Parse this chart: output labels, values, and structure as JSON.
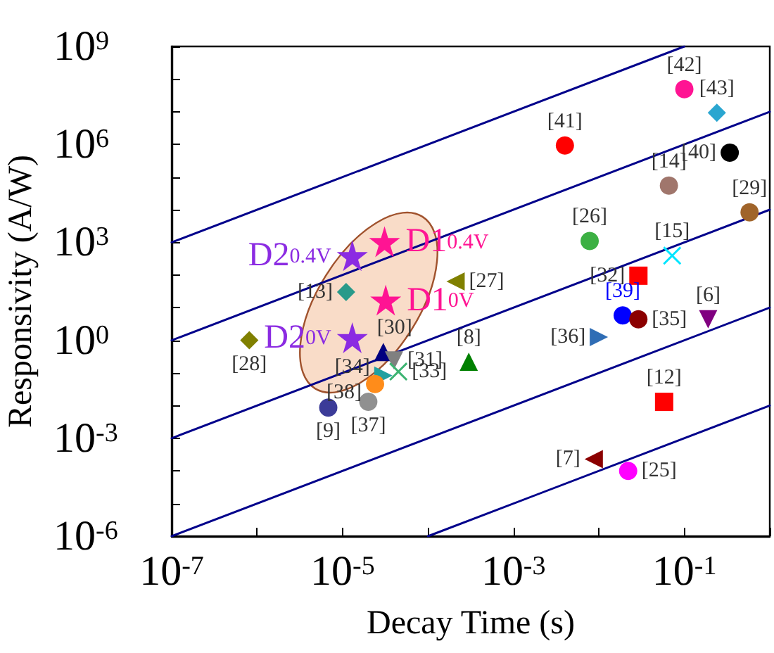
{
  "chart_data": {
    "type": "scatter",
    "xlabel": "Decay Time (s)",
    "ylabel": "Responsivity (A/W)",
    "log": "xy",
    "grid": false,
    "legend": false,
    "xlim": [
      1e-07,
      1
    ],
    "ylim": [
      1e-06,
      1000000000.0
    ],
    "xticks": [
      {
        "value": 1e-07,
        "label": "10$^{-7}$"
      },
      {
        "value": 1e-06,
        "label": null
      },
      {
        "value": 1e-05,
        "label": "10$^{-5}$"
      },
      {
        "value": 0.0001,
        "label": null
      },
      {
        "value": 0.001,
        "label": "10$^{-3}$"
      },
      {
        "value": 0.01,
        "label": null
      },
      {
        "value": 0.1,
        "label": "10$^{-1}$"
      },
      {
        "value": 1,
        "label": null
      }
    ],
    "yticks": [
      {
        "value": 1e-06,
        "label": "10$^{-6}$"
      },
      {
        "value": 1e-05,
        "label": null
      },
      {
        "value": 0.0001,
        "label": null
      },
      {
        "value": 0.001,
        "label": "10$^{-3}$"
      },
      {
        "value": 0.01,
        "label": null
      },
      {
        "value": 0.1,
        "label": null
      },
      {
        "value": 1,
        "label": "10$^{0}$"
      },
      {
        "value": 10,
        "label": null
      },
      {
        "value": 100,
        "label": null
      },
      {
        "value": 1000,
        "label": "10$^{3}$"
      },
      {
        "value": 10000.0,
        "label": null
      },
      {
        "value": 100000.0,
        "label": null
      },
      {
        "value": 1000000.0,
        "label": "10$^{6}$"
      },
      {
        "value": 10000000.0,
        "label": null
      },
      {
        "value": 100000000.0,
        "label": null
      },
      {
        "value": 1000000000.0,
        "label": "10$^{9}$"
      }
    ],
    "series": [
      {
        "type": "scatter",
        "name": "[42]",
        "color": "#ff1493",
        "x": [
          0.1
        ],
        "values": [
          49000000.0
        ]
      },
      {
        "type": "scatter",
        "name": "[43]",
        "color": "#2aa6d0",
        "marker": "diamond",
        "x": [
          0.24
        ],
        "values": [
          9300000.0
        ]
      },
      {
        "type": "scatter",
        "name": "[41]",
        "color": "#ff0000",
        "marker": "circle",
        "x": [
          0.004
        ],
        "values": [
          930000.0
        ]
      },
      {
        "type": "scatter",
        "name": "[40]",
        "color": "#000000",
        "x": [
          0.34
        ],
        "values": [
          560000.0
        ]
      },
      {
        "type": "scatter",
        "name": "[14]",
        "color": "#a0766c",
        "marker": "circle",
        "x": [
          0.066
        ],
        "values": [
          55000.0
        ]
      },
      {
        "type": "scatter",
        "name": "[29]",
        "color": "#a0642a",
        "x": [
          0.58
        ],
        "values": [
          8300
        ]
      },
      {
        "type": "scatter",
        "name": "D1$_{0.4V}$",
        "color": "#ff1493",
        "marker": "star",
        "x": [
          3.1e-05
        ],
        "values": [
          1050
        ]
      },
      {
        "type": "scatter",
        "name": "D2$_{0.4V}$",
        "color": "#8b2be2",
        "marker": "star",
        "x": [
          1.3e-05
        ],
        "values": [
          390
        ]
      },
      {
        "type": "scatter",
        "name": "[13]",
        "color": "#2a9a8a",
        "marker": "diamond",
        "x": [
          1.1e-05
        ],
        "values": [
          30
        ]
      },
      {
        "type": "scatter",
        "name": "D1$_{0V}$",
        "color": "#ff1493",
        "marker": "star",
        "x": [
          3.2e-05
        ],
        "values": [
          17
        ]
      },
      {
        "type": "scatter",
        "name": "D2$_{0V}$",
        "color": "#8b2be2",
        "marker": "star",
        "x": [
          1.3e-05
        ],
        "values": [
          1.2
        ]
      },
      {
        "type": "scatter",
        "name": "[28]",
        "color": "#808000",
        "marker": "diamond",
        "x": [
          8.1e-07
        ],
        "values": [
          1.0
        ]
      },
      {
        "type": "scatter",
        "name": "[26]",
        "color": "#3cb043",
        "x": [
          0.0078
        ],
        "values": [
          1100
        ]
      },
      {
        "type": "scatter",
        "name": "[15]",
        "color": "#00e5ff",
        "marker": "cross",
        "x": [
          0.072
        ],
        "values": [
          390
        ]
      },
      {
        "type": "scatter",
        "name": "[32]",
        "color": "#ff0000",
        "marker": "square",
        "x": [
          0.029
        ],
        "values": [
          95
        ]
      },
      {
        "type": "scatter",
        "name": "[27]",
        "color": "#808000",
        "marker": "triangle-left",
        "x": [
          0.00021
        ],
        "values": [
          63
        ]
      },
      {
        "type": "scatter",
        "name": "[39]",
        "color": "#0000ff",
        "marker": "circle",
        "x": [
          0.019
        ],
        "values": [
          5.8
        ]
      },
      {
        "type": "scatter",
        "name": "[35]",
        "color": "#8b0000",
        "marker": "circle",
        "x": [
          0.029
        ],
        "values": [
          4.4
        ]
      },
      {
        "type": "scatter",
        "name": "[6]",
        "color": "#800080",
        "marker": "triangle-down",
        "x": [
          0.19
        ],
        "values": [
          4.4
        ]
      },
      {
        "type": "scatter",
        "name": "[36]",
        "color": "#2f6db5",
        "marker": "triangle-right",
        "x": [
          0.01
        ],
        "values": [
          1.26
        ]
      },
      {
        "type": "scatter",
        "name": "[30]",
        "color": "#000080",
        "marker": "triangle",
        "x": [
          3e-05
        ],
        "values": [
          0.44
        ]
      },
      {
        "type": "scatter",
        "name": "[31]",
        "color": "#808080",
        "marker": "triangle-down",
        "x": [
          4e-05
        ],
        "values": [
          0.24
        ]
      },
      {
        "type": "scatter",
        "name": "[34]",
        "color": "#20a0a0",
        "marker": "triangle-right",
        "x": [
          3e-05
        ],
        "values": [
          0.083
        ]
      },
      {
        "type": "scatter",
        "name": "[33]",
        "color": "#3cb371",
        "marker": "cross",
        "x": [
          4.5e-05
        ],
        "values": [
          0.11
        ]
      },
      {
        "type": "scatter",
        "name": "[8]",
        "color": "#008000",
        "marker": "triangle",
        "x": [
          0.0003
        ],
        "values": [
          0.22
        ]
      },
      {
        "type": "scatter",
        "name": "[38]",
        "color": "#ff8c1a",
        "x": [
          2.4e-05
        ],
        "values": [
          0.046
        ]
      },
      {
        "type": "scatter",
        "name": "[9]",
        "color": "#3b3b98",
        "x": [
          6.8e-06
        ],
        "values": [
          0.0087
        ]
      },
      {
        "type": "scatter",
        "name": "[37]",
        "color": "#909090",
        "marker": "circle",
        "x": [
          2e-05
        ],
        "values": [
          0.013
        ]
      },
      {
        "type": "scatter",
        "name": "[12]",
        "color": "#ff0000",
        "marker": "square",
        "x": [
          0.058
        ],
        "values": [
          0.013
        ]
      },
      {
        "type": "scatter",
        "name": "[7]",
        "color": "#8b0000",
        "marker": "triangle-left",
        "x": [
          0.0087
        ],
        "values": [
          0.00023
        ]
      },
      {
        "type": "scatter",
        "name": "[25]",
        "color": "#ff00ff",
        "marker": "circle",
        "x": [
          0.022
        ],
        "values": [
          0.0001
        ]
      },
      {
        "type": "line",
        "color": "#00008b",
        "marker": "none",
        "line_style": "solid",
        "x": [
          1e-07,
          0.1
        ],
        "values": [
          1000,
          1000000000.0
        ]
      },
      {
        "type": "line",
        "color": "#00008b",
        "marker": "none",
        "line_style": "solid",
        "x": [
          1e-07,
          1
        ],
        "values": [
          1,
          10000000.0
        ]
      },
      {
        "type": "line",
        "color": "#00008b",
        "marker": "none",
        "line_style": "solid",
        "x": [
          1e-07,
          1
        ],
        "values": [
          0.001,
          10000.0
        ]
      },
      {
        "type": "line",
        "color": "#00008b",
        "marker": "none",
        "line_style": "solid",
        "x": [
          1e-07,
          1
        ],
        "values": [
          1e-06,
          10
        ]
      },
      {
        "type": "line",
        "color": "#00008b",
        "marker": "none",
        "line_style": "solid",
        "x": [
          0.0001,
          1
        ],
        "values": [
          1e-06,
          0.01
        ]
      }
    ]
  }
}
